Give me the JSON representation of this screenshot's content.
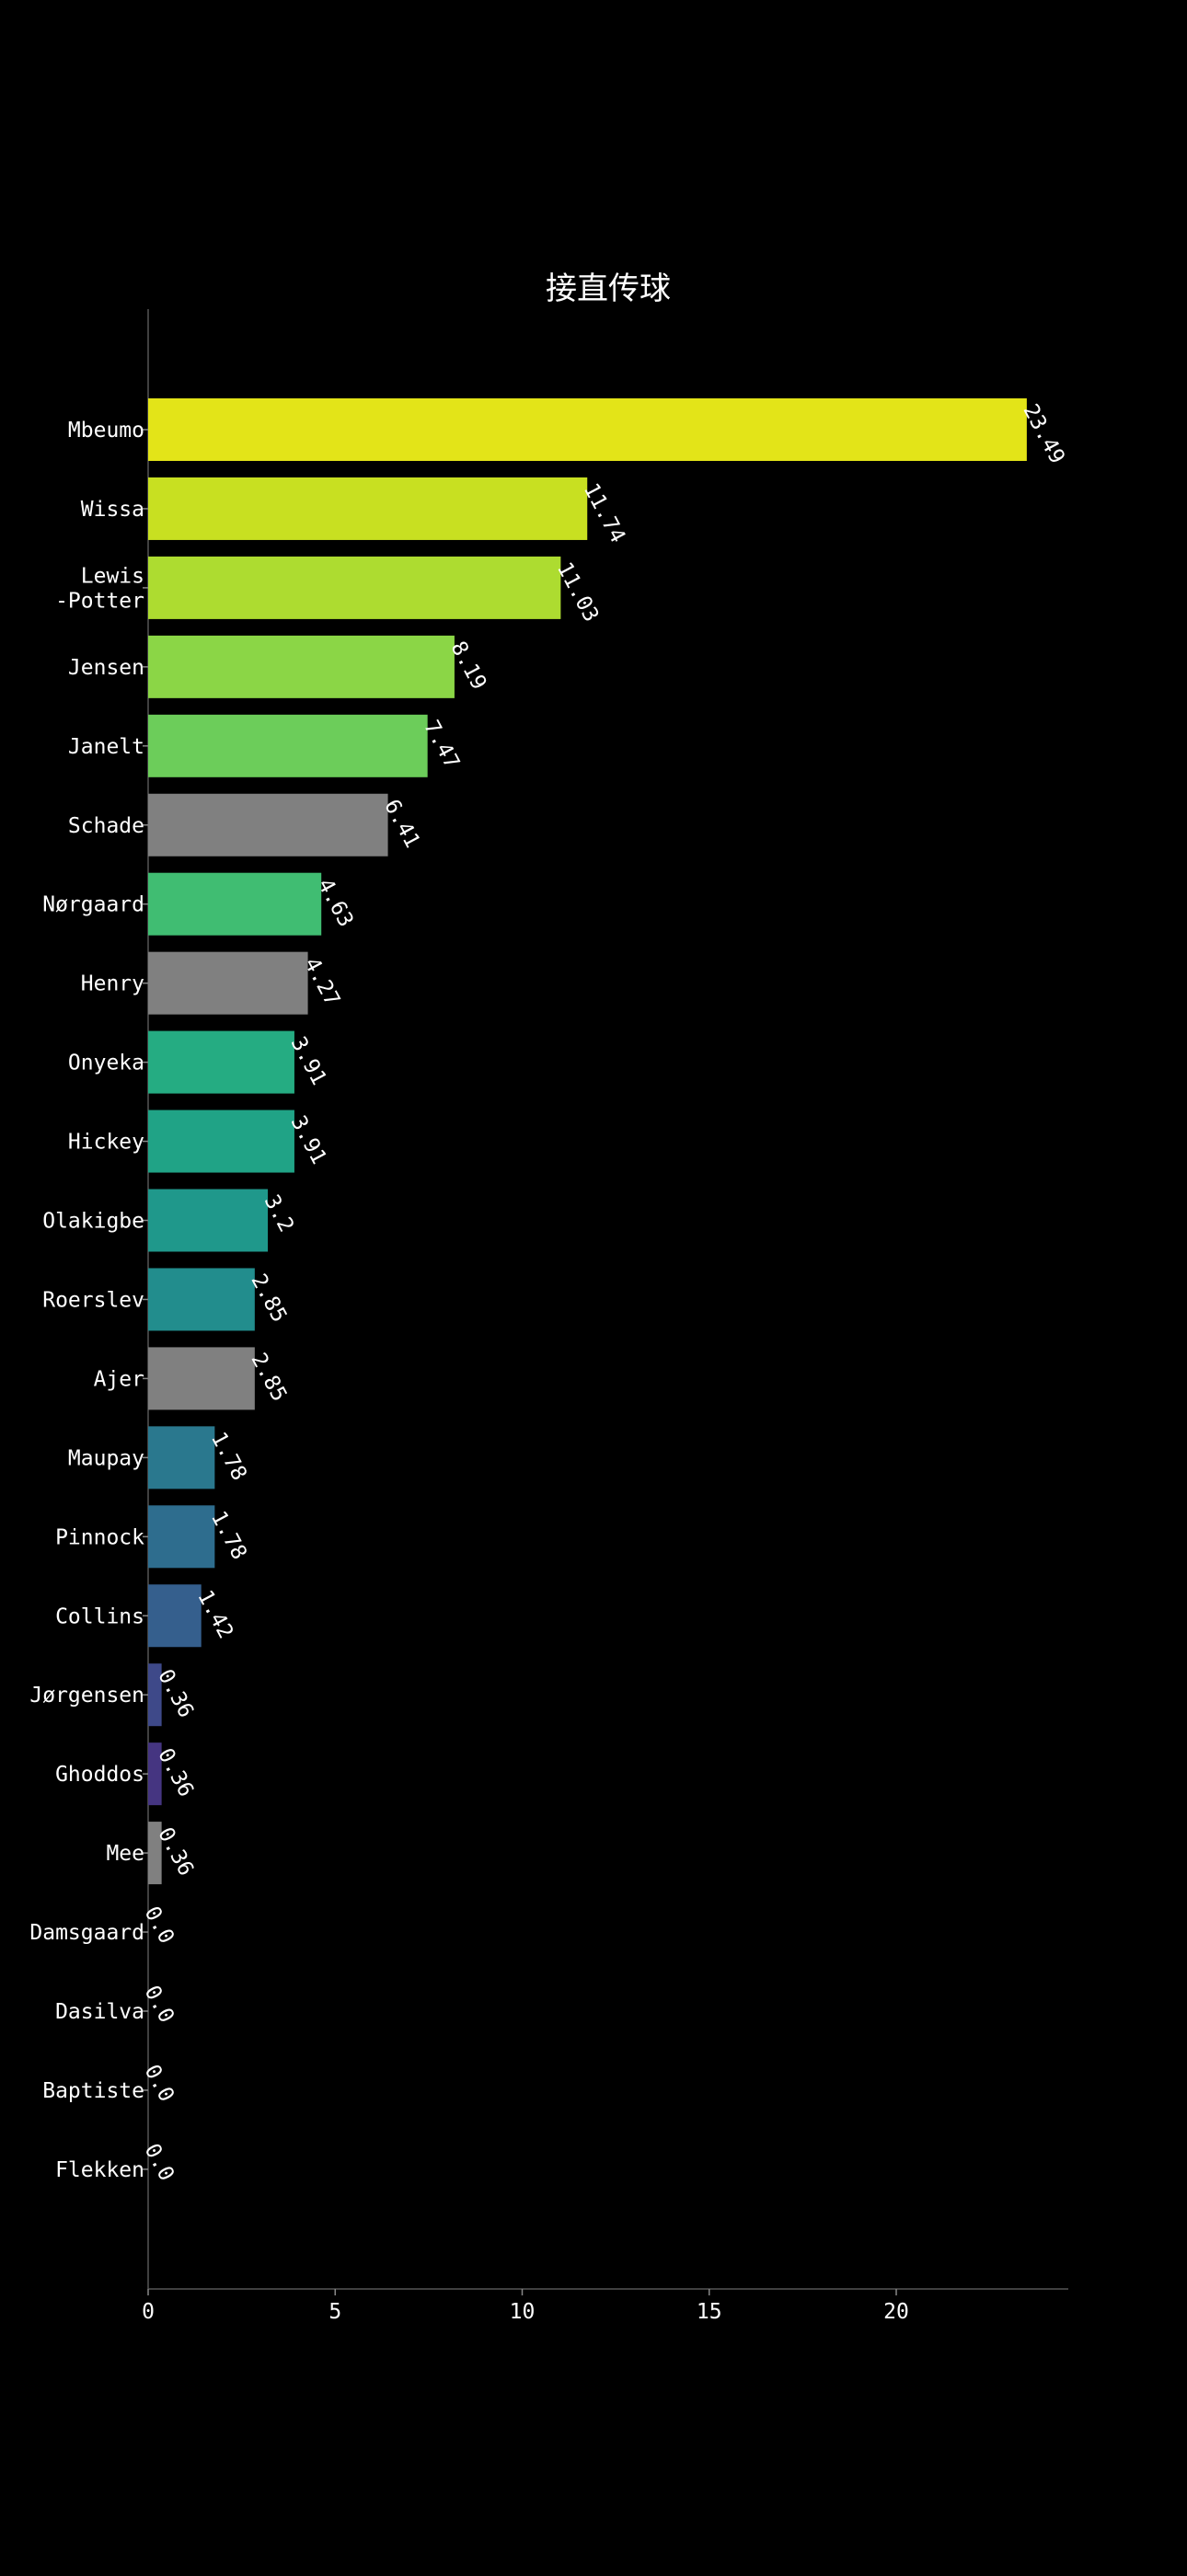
{
  "chart_data": {
    "type": "bar",
    "orientation": "horizontal",
    "title": "接直传球",
    "xlabel": "",
    "ylabel": "",
    "xlim": [
      0,
      24.6
    ],
    "x_ticks": [
      0,
      5,
      10,
      15,
      20
    ],
    "grid": false,
    "legend": "none",
    "background": "#000000",
    "categories": [
      "Mbeumo",
      "Wissa",
      "Lewis\n-Potter",
      "Jensen",
      "Janelt",
      "Schade",
      "Nørgaard",
      "Henry",
      "Onyeka",
      "Hickey",
      "Olakigbe",
      "Roerslev",
      "Ajer",
      "Maupay",
      "Pinnock",
      "Collins",
      "Jørgensen",
      "Ghoddos",
      "Mee",
      "Damsgaard",
      "Dasilva",
      "Baptiste",
      "Flekken"
    ],
    "values": [
      23.49,
      11.74,
      11.03,
      8.19,
      7.47,
      6.41,
      4.63,
      4.27,
      3.91,
      3.91,
      3.2,
      2.85,
      2.85,
      1.78,
      1.78,
      1.42,
      0.36,
      0.36,
      0.36,
      0.0,
      0.0,
      0.0,
      0.0
    ],
    "value_labels": [
      "23.49",
      "11.74",
      "11.03",
      "8.19",
      "7.47",
      "6.41",
      "4.63",
      "4.27",
      "3.91",
      "3.91",
      "3.2",
      "2.85",
      "2.85",
      "1.78",
      "1.78",
      "1.42",
      "0.36",
      "0.36",
      "0.36",
      "0.0",
      "0.0",
      "0.0",
      "0.0"
    ],
    "colors": [
      "#e3e418",
      "#c8e021",
      "#addc30",
      "#8bd646",
      "#6ccd5a",
      "#808080",
      "#40bd72",
      "#808080",
      "#25ac82",
      "#20a386",
      "#1f988b",
      "#228d8d",
      "#808080",
      "#2a788e",
      "#2e6d8e",
      "#355f8d",
      "#3e4989",
      "#453581",
      "#808080",
      "#472777",
      "#481b6d",
      "#470e61",
      "#440154"
    ]
  }
}
